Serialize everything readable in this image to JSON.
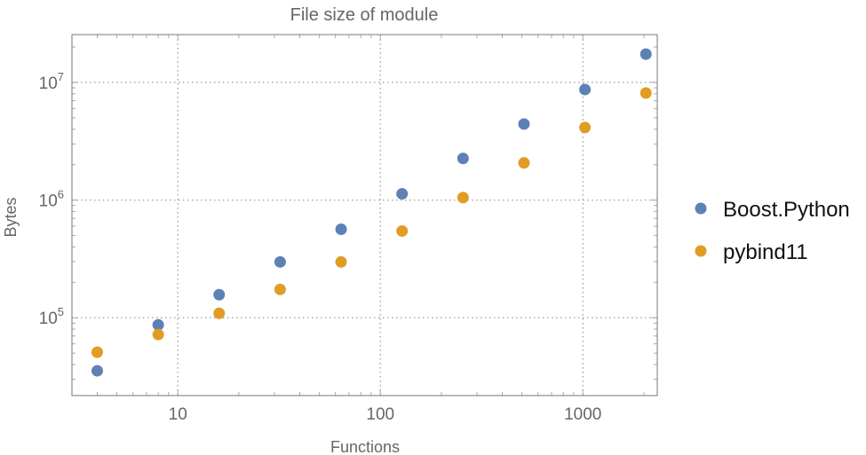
{
  "chart_data": {
    "type": "scatter",
    "title": "File size of module",
    "xlabel": "Functions",
    "ylabel": "Bytes",
    "xscale": "log",
    "yscale": "log",
    "xlim": [
      3,
      2330
    ],
    "ylim": [
      21800,
      25500000
    ],
    "grid": true,
    "legend_position": "right",
    "x_ticks": [
      {
        "value": 10,
        "label": "10"
      },
      {
        "value": 100,
        "label": "100"
      },
      {
        "value": 1000,
        "label": "1000"
      }
    ],
    "y_ticks": [
      {
        "value": 100000,
        "base": "10",
        "exp": "5"
      },
      {
        "value": 1000000,
        "base": "10",
        "exp": "6"
      },
      {
        "value": 10000000,
        "base": "10",
        "exp": "7"
      }
    ],
    "x": [
      4,
      8,
      16,
      32,
      64,
      128,
      256,
      512,
      1024,
      2048
    ],
    "series": [
      {
        "name": "Boost.Python",
        "color": "#5e81b5",
        "values": [
          35400,
          87000,
          157000,
          298000,
          565000,
          1130000,
          2260000,
          4430000,
          8700000,
          17400000
        ]
      },
      {
        "name": "pybind11",
        "color": "#e19c24",
        "values": [
          50900,
          72000,
          109000,
          174000,
          298000,
          546000,
          1050000,
          2070000,
          4140000,
          8120000
        ]
      }
    ]
  }
}
